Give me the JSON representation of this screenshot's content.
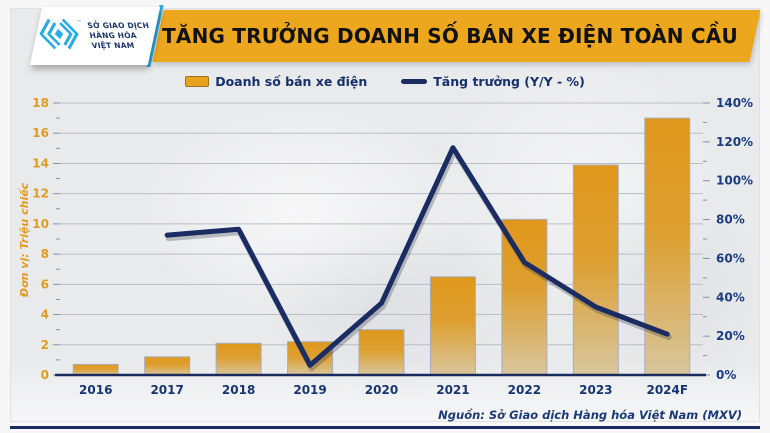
{
  "logo": {
    "org_lines": [
      "SỞ GIAO DỊCH",
      "HÀNG HÓA",
      "VIỆT NAM"
    ],
    "trademark": "™"
  },
  "header": {
    "title": "TĂNG TRƯỞNG DOANH SỐ BÁN XE ĐIỆN TOÀN CẦU"
  },
  "legend": {
    "bars_label": "Doanh số bán xe điện",
    "line_label": "Tăng trưởng (Y/Y - %)"
  },
  "footer": {
    "source": "Nguồn: Sở Giao dịch Hàng hóa Việt Nam (MXV)"
  },
  "colors": {
    "banner_gold": "#ECA71E",
    "bar_top": "#E0971C",
    "bar_bottom": "#D8C69E",
    "bar_border": "#A8AEBB",
    "line_navy": "#1B2C62",
    "left_axis_orange": "#E39A1C",
    "right_axis_navy": "#1B3C7E",
    "gridline": "#b9bec9",
    "cyan": "#2BACE3",
    "panel_bg": "#e9eaec"
  },
  "chart_data": {
    "type": "bar",
    "subtype": "combo-bar-line-dual-axis",
    "title": "TĂNG TRƯỞNG DOANH SỐ BÁN XE ĐIỆN TOÀN CẦU",
    "categories": [
      "2016",
      "2017",
      "2018",
      "2019",
      "2020",
      "2021",
      "2022",
      "2023",
      "2024F"
    ],
    "series": [
      {
        "name": "Doanh số bán xe điện",
        "type": "bar",
        "axis": "left",
        "values": [
          0.7,
          1.2,
          2.1,
          2.2,
          3.0,
          6.5,
          10.3,
          13.9,
          17.0
        ]
      },
      {
        "name": "Tăng trưởng (Y/Y - %)",
        "type": "line",
        "axis": "right",
        "values": [
          null,
          72,
          75,
          5,
          37,
          117,
          58,
          35,
          21
        ]
      }
    ],
    "left_axis": {
      "label": "Đơn vị: Triệu chiếc",
      "min": 0,
      "max": 18,
      "step": 2,
      "ticks": [
        "0",
        "2",
        "4",
        "6",
        "8",
        "10",
        "12",
        "14",
        "16",
        "18"
      ]
    },
    "right_axis": {
      "min": 0,
      "max": 140,
      "step": 20,
      "ticks": [
        "0%",
        "20%",
        "40%",
        "60%",
        "80%",
        "100%",
        "120%",
        "140%"
      ]
    },
    "grid": "horizontal major gridlines every 2 units, minor axis ticks every 1 unit / 10%",
    "legend_position": "top-center"
  }
}
